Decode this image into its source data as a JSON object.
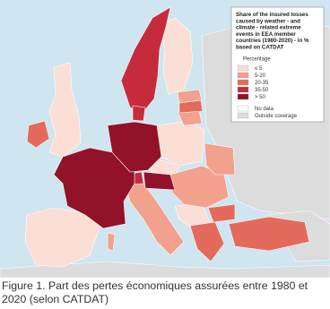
{
  "legend": {
    "title_lines": [
      "Share of the insured losses",
      "caused by weather - and",
      "climate - related extreme",
      "events in EEA member",
      "countries (1980-2020) - in %",
      "based on CATDAT"
    ],
    "subtitle": "Percentage",
    "classes": [
      {
        "label": "≤ 5",
        "color": "#fbded5"
      },
      {
        "label": "5-20",
        "color": "#f2a18c"
      },
      {
        "label": "20-35",
        "color": "#e46a5c"
      },
      {
        "label": "35-50",
        "color": "#c62b3c"
      },
      {
        "label": "> 50",
        "color": "#92122a"
      }
    ],
    "extra": [
      {
        "label": "No data",
        "color": "#ffffff"
      },
      {
        "label": "Outside coverage",
        "color": "#dcdcdc"
      }
    ]
  },
  "caption": "Figure 1. Part des pertes économiques assurées entre 1980 et 2020 (selon CATDAT)"
}
